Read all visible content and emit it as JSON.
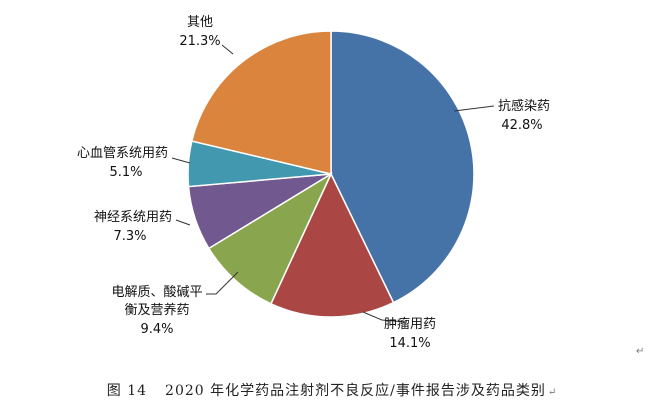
{
  "chart_data": {
    "type": "pie",
    "slices": [
      {
        "label": "抗感染药",
        "value": 42.8,
        "pct_text": "42.8%",
        "color": "#4572A7"
      },
      {
        "label": "肿瘤用药",
        "value": 14.1,
        "pct_text": "14.1%",
        "color": "#AA4643"
      },
      {
        "label": "电解质、酸碱平衡及营养药",
        "label_lines": [
          "电解质、酸碱平",
          "衡及营养药"
        ],
        "value": 9.4,
        "pct_text": "9.4%",
        "color": "#89A54E"
      },
      {
        "label": "神经系统用药",
        "value": 7.3,
        "pct_text": "7.3%",
        "color": "#71588F"
      },
      {
        "label": "心血管系统用药",
        "value": 5.1,
        "pct_text": "5.1%",
        "color": "#4198AF"
      },
      {
        "label": "其他",
        "value": 21.3,
        "pct_text": "21.3%",
        "color": "#DB843D"
      }
    ],
    "start": "12 o'clock",
    "direction": "clockwise",
    "legend": "none"
  },
  "caption": {
    "figure_no": "图 14",
    "text": "2020 年化学药品注射剂不良反应/事件报告涉及药品类别"
  },
  "marks": {
    "paragraph": "↵"
  }
}
